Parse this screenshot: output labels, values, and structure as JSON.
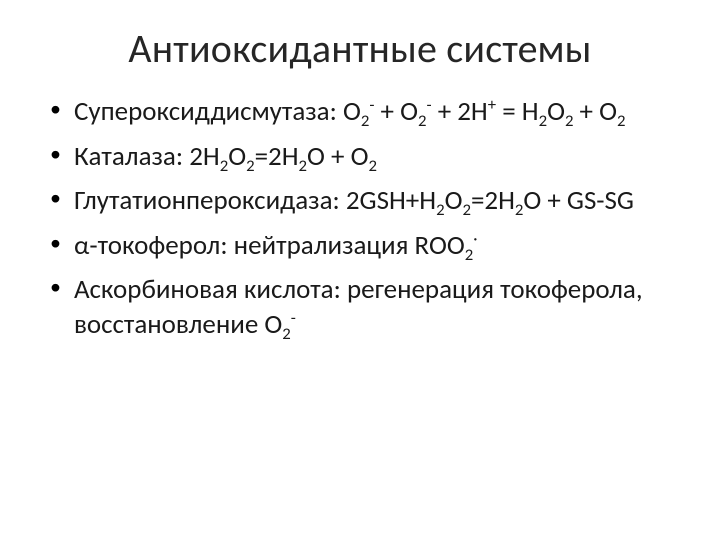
{
  "slide": {
    "background_color": "#ffffff",
    "title": "Антиоксидантные системы",
    "title_fontsize": 40,
    "title_color": "#262626",
    "body_fontsize": 27,
    "body_color": "#1a1a1a",
    "bullet_char": "•",
    "bullets": [
      {
        "leader": "Супероксиддисмутаза:",
        "tail_segments": [
          {
            "t": "O"
          },
          {
            "t": "2",
            "sub": true
          },
          {
            "t": "-",
            "sup": true
          },
          {
            "t": " + O"
          },
          {
            "t": "2",
            "sub": true
          },
          {
            "t": "-",
            "sup": true
          },
          {
            "t": " + 2H"
          },
          {
            "t": "+",
            "sup": true
          },
          {
            "t": " = H"
          },
          {
            "t": "2",
            "sub": true
          },
          {
            "t": "O"
          },
          {
            "t": "2",
            "sub": true
          },
          {
            "t": " + O"
          },
          {
            "t": "2",
            "sub": true
          }
        ]
      },
      {
        "leader": "Каталаза:",
        "tail_segments": [
          {
            "t": "2H"
          },
          {
            "t": "2",
            "sub": true
          },
          {
            "t": "O"
          },
          {
            "t": "2",
            "sub": true
          },
          {
            "t": "=2H"
          },
          {
            "t": "2",
            "sub": true
          },
          {
            "t": "O + O"
          },
          {
            "t": "2",
            "sub": true
          }
        ]
      },
      {
        "leader": "Глутатионпероксидаза:",
        "tail_segments": [
          {
            "t": "2GSH+H"
          },
          {
            "t": "2",
            "sub": true
          },
          {
            "t": "O"
          },
          {
            "t": "2",
            "sub": true
          },
          {
            "t": "=2H"
          },
          {
            "t": "2",
            "sub": true
          },
          {
            "t": "O + GS-SG"
          }
        ]
      },
      {
        "leader": "α-токоферол:",
        "tail_segments": [
          {
            "t": " нейтрализация ROO"
          },
          {
            "t": "2",
            "sub": true
          },
          {
            "t": "·",
            "sup": true
          }
        ]
      },
      {
        "leader": "Аскорбиновая кислота:",
        "tail_segments": [
          {
            "t": "регенерация токоферола, восстановление O"
          },
          {
            "t": "2",
            "sub": true
          },
          {
            "t": "-",
            "sup": true
          }
        ]
      }
    ]
  }
}
